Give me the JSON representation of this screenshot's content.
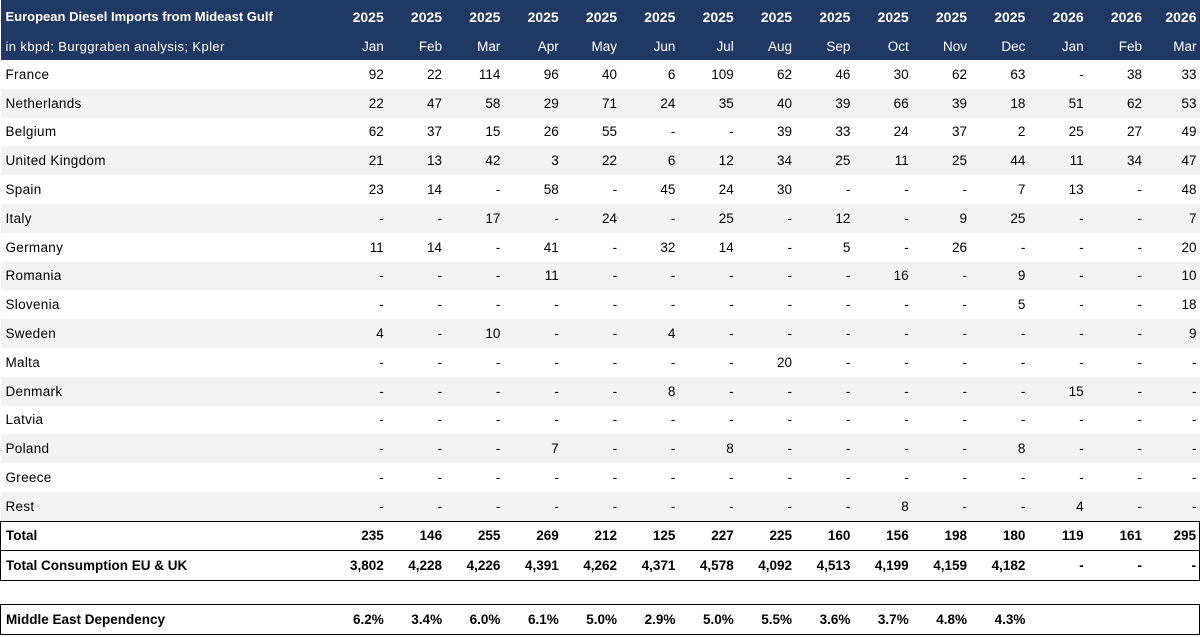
{
  "title": "European Diesel Imports from Mideast Gulf",
  "subtitle": "in kbpd; Burggraben analysis; Kpler",
  "years": [
    "2025",
    "2025",
    "2025",
    "2025",
    "2025",
    "2025",
    "2025",
    "2025",
    "2025",
    "2025",
    "2025",
    "2025",
    "2026",
    "2026",
    "2026"
  ],
  "months": [
    "Jan",
    "Feb",
    "Mar",
    "Apr",
    "May",
    "Jun",
    "Jul",
    "Aug",
    "Sep",
    "Oct",
    "Nov",
    "Dec",
    "Jan",
    "Feb",
    "Mar"
  ],
  "rows": [
    {
      "country": "France",
      "values": [
        "92",
        "22",
        "114",
        "96",
        "40",
        "6",
        "109",
        "62",
        "46",
        "30",
        "62",
        "63",
        "-",
        "38",
        "33"
      ]
    },
    {
      "country": "Netherlands",
      "values": [
        "22",
        "47",
        "58",
        "29",
        "71",
        "24",
        "35",
        "40",
        "39",
        "66",
        "39",
        "18",
        "51",
        "62",
        "53"
      ]
    },
    {
      "country": "Belgium",
      "values": [
        "62",
        "37",
        "15",
        "26",
        "55",
        "-",
        "-",
        "39",
        "33",
        "24",
        "37",
        "2",
        "25",
        "27",
        "49"
      ]
    },
    {
      "country": "United Kingdom",
      "values": [
        "21",
        "13",
        "42",
        "3",
        "22",
        "6",
        "12",
        "34",
        "25",
        "11",
        "25",
        "44",
        "11",
        "34",
        "47"
      ]
    },
    {
      "country": "Spain",
      "values": [
        "23",
        "14",
        "-",
        "58",
        "-",
        "45",
        "24",
        "30",
        "-",
        "-",
        "-",
        "7",
        "13",
        "-",
        "48"
      ]
    },
    {
      "country": "Italy",
      "values": [
        "-",
        "-",
        "17",
        "-",
        "24",
        "-",
        "25",
        "-",
        "12",
        "-",
        "9",
        "25",
        "-",
        "-",
        "7"
      ]
    },
    {
      "country": "Germany",
      "values": [
        "11",
        "14",
        "-",
        "41",
        "-",
        "32",
        "14",
        "-",
        "5",
        "-",
        "26",
        "-",
        "-",
        "-",
        "20"
      ]
    },
    {
      "country": "Romania",
      "values": [
        "-",
        "-",
        "-",
        "11",
        "-",
        "-",
        "-",
        "-",
        "-",
        "16",
        "-",
        "9",
        "-",
        "-",
        "10"
      ]
    },
    {
      "country": "Slovenia",
      "values": [
        "-",
        "-",
        "-",
        "-",
        "-",
        "-",
        "-",
        "-",
        "-",
        "-",
        "-",
        "5",
        "-",
        "-",
        "18"
      ]
    },
    {
      "country": "Sweden",
      "values": [
        "4",
        "-",
        "10",
        "-",
        "-",
        "4",
        "-",
        "-",
        "-",
        "-",
        "-",
        "-",
        "-",
        "-",
        "9"
      ]
    },
    {
      "country": "Malta",
      "values": [
        "-",
        "-",
        "-",
        "-",
        "-",
        "-",
        "-",
        "20",
        "-",
        "-",
        "-",
        "-",
        "-",
        "-",
        "-"
      ]
    },
    {
      "country": "Denmark",
      "values": [
        "-",
        "-",
        "-",
        "-",
        "-",
        "8",
        "-",
        "-",
        "-",
        "-",
        "-",
        "-",
        "15",
        "-",
        "-"
      ]
    },
    {
      "country": "Latvia",
      "values": [
        "-",
        "-",
        "-",
        "-",
        "-",
        "-",
        "-",
        "-",
        "-",
        "-",
        "-",
        "-",
        "-",
        "-",
        "-"
      ]
    },
    {
      "country": "Poland",
      "values": [
        "-",
        "-",
        "-",
        "7",
        "-",
        "-",
        "8",
        "-",
        "-",
        "-",
        "-",
        "8",
        "-",
        "-",
        "-"
      ]
    },
    {
      "country": "Greece",
      "values": [
        "-",
        "-",
        "-",
        "-",
        "-",
        "-",
        "-",
        "-",
        "-",
        "-",
        "-",
        "-",
        "-",
        "-",
        "-"
      ]
    },
    {
      "country": "Rest",
      "values": [
        "-",
        "-",
        "-",
        "-",
        "-",
        "-",
        "-",
        "-",
        "-",
        "8",
        "-",
        "-",
        "4",
        "-",
        "-"
      ]
    }
  ],
  "total": {
    "label": "Total",
    "values": [
      "235",
      "146",
      "255",
      "269",
      "212",
      "125",
      "227",
      "225",
      "160",
      "156",
      "198",
      "180",
      "119",
      "161",
      "295"
    ]
  },
  "consumption": {
    "label": "Total Consumption EU & UK",
    "values": [
      "3,802",
      "4,228",
      "4,226",
      "4,391",
      "4,262",
      "4,371",
      "4,578",
      "4,092",
      "4,513",
      "4,199",
      "4,159",
      "4,182",
      "-",
      "-",
      "-"
    ]
  },
  "dependency": {
    "label": "Middle East Dependency",
    "values": [
      "6.2%",
      "3.4%",
      "6.0%",
      "6.1%",
      "5.0%",
      "2.9%",
      "5.0%",
      "5.5%",
      "3.6%",
      "3.7%",
      "4.8%",
      "4.3%",
      "",
      "",
      ""
    ]
  },
  "colors": {
    "header_bg": "#203864",
    "header_text": "#ffffff",
    "stripe": "#f2f2f2"
  }
}
